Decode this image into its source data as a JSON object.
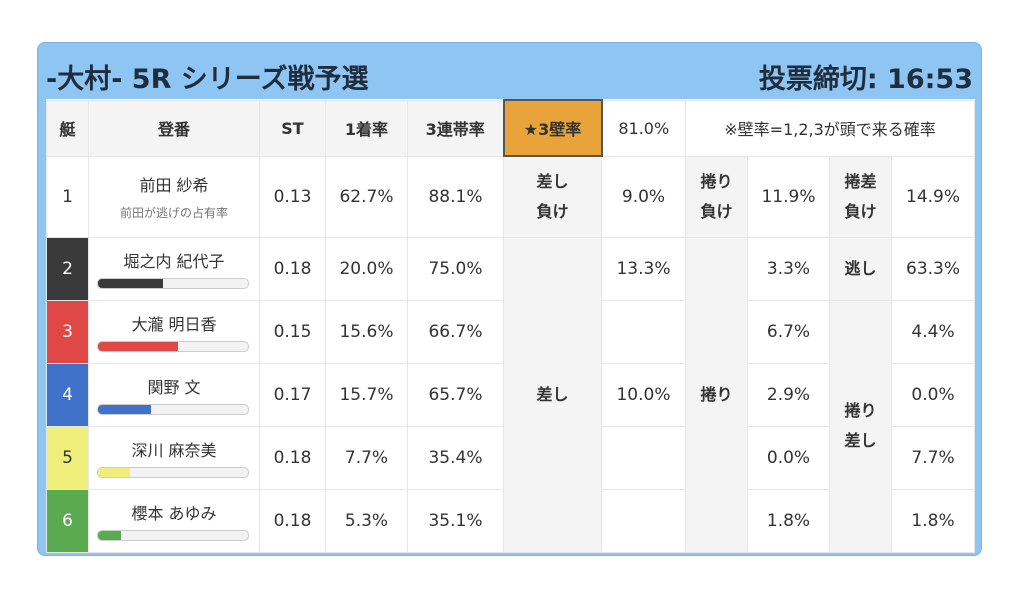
{
  "header": {
    "title": "-大村- 5R シリーズ戦予選",
    "deadline": "投票締切: 16:53"
  },
  "table": {
    "columns": [
      "艇",
      "登番",
      "ST",
      "1着率",
      "3連帯率",
      "★3壁率",
      "81.0%",
      "※壁率=1,2,3が頭で来る確率"
    ],
    "rows": [
      {
        "boat": "1",
        "name": "前田 紗希",
        "sub": "前田が逃げの占有率",
        "st": "0.13",
        "win": "62.7%",
        "top3": "88.1%"
      },
      {
        "boat": "2",
        "name": "堀之内 紀代子",
        "bar": 43,
        "st": "0.18",
        "win": "20.0%",
        "top3": "75.0%"
      },
      {
        "boat": "3",
        "name": "大瀧 明日香",
        "bar": 53,
        "st": "0.15",
        "win": "15.6%",
        "top3": "66.7%"
      },
      {
        "boat": "4",
        "name": "関野 文",
        "bar": 35,
        "st": "0.17",
        "win": "15.7%",
        "top3": "65.7%"
      },
      {
        "boat": "5",
        "name": "深川 麻奈美",
        "bar": 21,
        "st": "0.18",
        "win": "7.7%",
        "top3": "35.4%"
      },
      {
        "boat": "6",
        "name": "櫻本 あゆみ",
        "bar": 15,
        "st": "0.18",
        "win": "5.3%",
        "top3": "35.1%"
      }
    ],
    "wall": {
      "row1": [
        "差し\n負け",
        "9.0%",
        "捲り\n負け",
        "11.9%",
        "捲差\n負け",
        "14.9%"
      ],
      "sashi_label": "差し",
      "sashi_values": [
        "13.3%",
        null,
        "10.0%",
        null,
        null
      ],
      "makuri_label": "捲り",
      "makuri_values": [
        "3.3%",
        "6.7%",
        "2.9%",
        "0.0%",
        "1.8%"
      ],
      "nige_label": "逃し",
      "nige_value": "63.3%",
      "makurisashi_label": "捲り\n差し",
      "makurisashi_values": [
        "4.4%",
        "0.0%",
        "7.7%",
        "1.8%"
      ]
    }
  }
}
